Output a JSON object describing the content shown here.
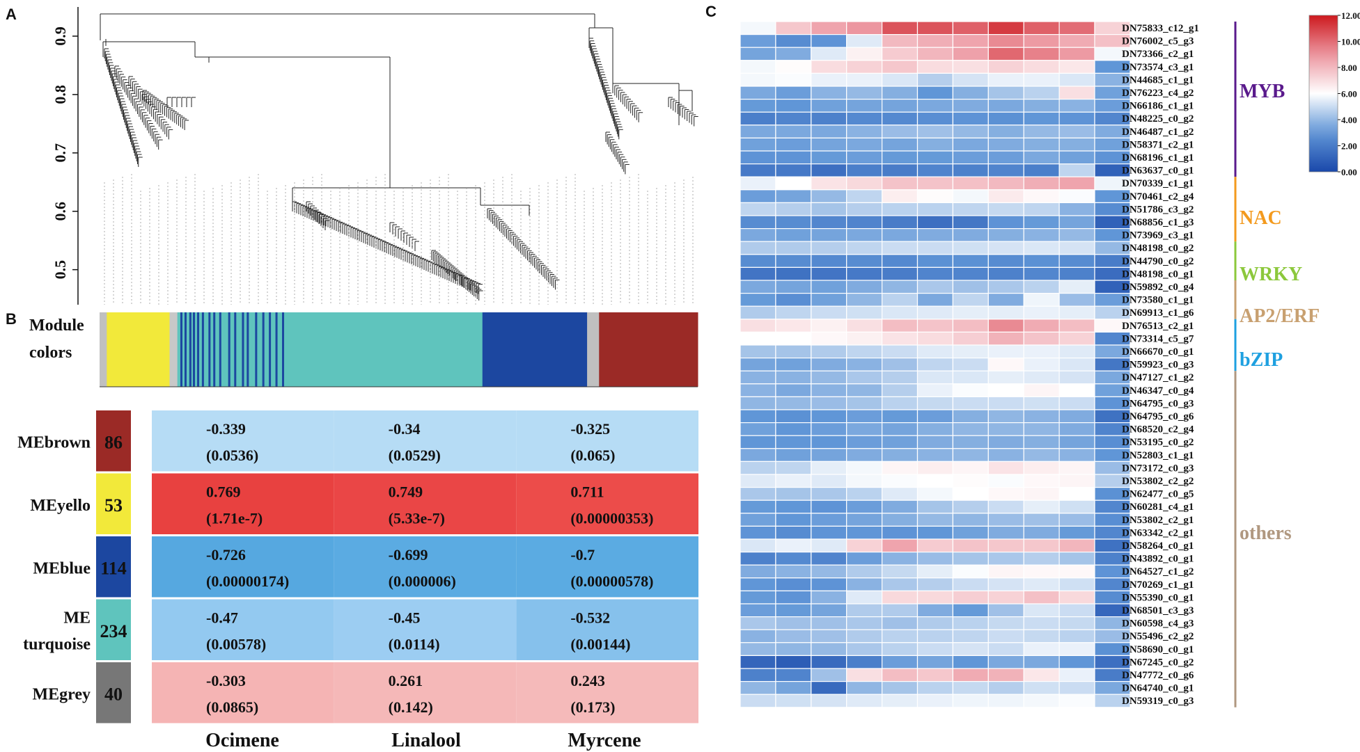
{
  "panel_labels": {
    "a": "A",
    "b": "B",
    "c": "C"
  },
  "chart_data": [
    {
      "type": "dendrogram",
      "panel": "A",
      "ylim": [
        0.44,
        0.95
      ],
      "yticks": [
        "0.5",
        "0.6",
        "0.7",
        "0.8",
        "0.9"
      ]
    },
    {
      "type": "heatmap",
      "panel": "B",
      "module_colors_label": [
        "Module",
        "colors"
      ],
      "module_bar": [
        {
          "module": "grey",
          "from": 0.0,
          "to": 0.012,
          "color": "#c0c0c0"
        },
        {
          "module": "yellow",
          "from": 0.012,
          "to": 0.117,
          "color": "#f2e93a"
        },
        {
          "module": "grey",
          "from": 0.117,
          "to": 0.13,
          "color": "#c8c8c8"
        },
        {
          "module": "turquoise",
          "from": 0.13,
          "to": 0.64,
          "color": "#5fc4bd"
        },
        {
          "module": "blue",
          "from": 0.64,
          "to": 0.815,
          "color": "#1c47a0"
        },
        {
          "module": "grey",
          "from": 0.815,
          "to": 0.835,
          "color": "#c0c0c0"
        },
        {
          "module": "brown",
          "from": 0.835,
          "to": 1.0,
          "color": "#9b2a26"
        }
      ],
      "module_bar_blue_stripes": [
        0.135,
        0.142,
        0.15,
        0.156,
        0.163,
        0.171,
        0.182,
        0.19,
        0.2,
        0.215,
        0.225,
        0.238,
        0.246,
        0.26,
        0.272,
        0.283,
        0.294,
        0.305
      ],
      "columns": [
        "Ocimene",
        "Linalool",
        "Myrcene"
      ],
      "rows": [
        {
          "label": "MEbrown",
          "count": "86",
          "module_color": "#9b2a26",
          "cells": [
            {
              "r": "-0.339",
              "p": "(0.0536)",
              "color": "#b6dcf5"
            },
            {
              "r": "-0.34",
              "p": "(0.0529)",
              "color": "#b6dcf5"
            },
            {
              "r": "-0.325",
              "p": "(0.065)",
              "color": "#b6dcf5"
            }
          ]
        },
        {
          "label": "MEyello",
          "count": "53",
          "module_color": "#f2e93a",
          "cells": [
            {
              "r": "0.769",
              "p": "(1.71e-7)",
              "color": "#e84140"
            },
            {
              "r": "0.749",
              "p": "(5.33e-7)",
              "color": "#ea4646"
            },
            {
              "r": "0.711",
              "p": "(0.00000353)",
              "color": "#ec4c4a"
            }
          ]
        },
        {
          "label": "MEblue",
          "count": "114",
          "module_color": "#1c47a0",
          "cells": [
            {
              "r": "-0.726",
              "p": "(0.00000174)",
              "color": "#56a8e0"
            },
            {
              "r": "-0.699",
              "p": "(0.000006)",
              "color": "#5babe2"
            },
            {
              "r": "-0.7",
              "p": "(0.00000578)",
              "color": "#5babe2"
            }
          ]
        },
        {
          "label_lines": [
            "ME",
            "turquoise"
          ],
          "label": "ME turquoise",
          "count": "234",
          "module_color": "#5fc4bd",
          "cells": [
            {
              "r": "-0.47",
              "p": "(0.00578)",
              "color": "#93c9f0"
            },
            {
              "r": "-0.45",
              "p": "(0.0114)",
              "color": "#9ccdf2"
            },
            {
              "r": "-0.532",
              "p": "(0.00144)",
              "color": "#86c1ec"
            }
          ]
        },
        {
          "label": "MEgrey",
          "count": "40",
          "module_color": "#777777",
          "cells": [
            {
              "r": "-0.303",
              "p": "(0.0865)",
              "color": "#f5b4b4"
            },
            {
              "r": "0.261",
              "p": "(0.142)",
              "color": "#f5b8b8"
            },
            {
              "r": "0.243",
              "p": "(0.173)",
              "color": "#f5baba"
            }
          ]
        }
      ]
    },
    {
      "type": "heatmap",
      "panel": "C",
      "colorbar": {
        "min": 0,
        "max": 12,
        "ticks": [
          "12.00",
          "10.00",
          "8.00",
          "6.00",
          "4.00",
          "2.00",
          "0.00"
        ]
      },
      "genes": [
        "DN75833_c12_g1",
        "DN76002_c5_g3",
        "DN73366_c2_g1",
        "DN73574_c3_g1",
        "DN44685_c1_g1",
        "DN76223_c4_g2",
        "DN66186_c1_g1",
        "DN48225_c0_g2",
        "DN46487_c1_g2",
        "DN58371_c2_g1",
        "DN68196_c1_g1",
        "DN63637_c0_g1",
        "DN70339_c1_g1",
        "DN70461_c2_g4",
        "DN51786_c3_g2",
        "DN68856_c1_g3",
        "DN73969_c3_g1",
        "DN48198_c0_g2",
        "DN44790_c0_g2",
        "DN48198_c0_g1",
        "DN59892_c0_g4",
        "DN73580_c1_g1",
        "DN69913_c1_g6",
        "DN76513_c2_g1",
        "DN73314_c5_g7",
        "DN66670_c0_g1",
        "DN59923_c0_g3",
        "DN47127_c1_g2",
        "DN46347_c0_g4",
        "DN64795_c0_g3",
        "DN64795_c0_g6",
        "DN68520_c2_g4",
        "DN53195_c0_g2",
        "DN52803_c1_g1",
        "DN73172_c0_g3",
        "DN53802_c2_g2",
        "DN62477_c0_g5",
        "DN60281_c4_g1",
        "DN53802_c2_g1",
        "DN63342_c2_g1",
        "DN58264_c0_g1",
        "DN43892_c0_g1",
        "DN64527_c1_g2",
        "DN70269_c1_g1",
        "DN55390_c0_g1",
        "DN68501_c3_g3",
        "DN60598_c4_g3",
        "DN55496_c2_g2",
        "DN58690_c0_g1",
        "DN67245_c0_g2",
        "DN47772_c0_g6",
        "DN64740_c0_g1",
        "DN59319_c0_g3"
      ],
      "highlight_gene": "DN75833_c12_g1",
      "highlight_color": "#e8202a",
      "values": [
        [
          5.8,
          7.6,
          8.6,
          9.0,
          10.6,
          10.6,
          10.3,
          11.2,
          10.3,
          10.0,
          7.3
        ],
        [
          3.2,
          2.6,
          2.9,
          5.4,
          8.0,
          8.3,
          8.6,
          9.3,
          8.9,
          8.4,
          7.8
        ],
        [
          3.4,
          3.6,
          5.4,
          6.4,
          7.5,
          8.1,
          8.7,
          10.1,
          9.5,
          8.9,
          5.8
        ],
        [
          5.8,
          6.1,
          7.0,
          7.3,
          7.6,
          7.0,
          6.9,
          7.3,
          7.0,
          6.7,
          3.0
        ],
        [
          5.8,
          5.9,
          5.6,
          5.6,
          5.3,
          4.6,
          5.2,
          5.6,
          5.6,
          5.3,
          3.8
        ],
        [
          3.5,
          3.2,
          3.8,
          4.0,
          3.7,
          3.0,
          3.7,
          4.3,
          4.7,
          6.9,
          3.3
        ],
        [
          3.1,
          3.0,
          3.3,
          3.4,
          3.4,
          3.5,
          3.6,
          3.5,
          3.7,
          3.8,
          3.2
        ],
        [
          2.1,
          2.3,
          2.2,
          2.5,
          2.5,
          2.7,
          2.9,
          2.8,
          3.0,
          2.9,
          2.4
        ],
        [
          3.5,
          3.5,
          3.5,
          3.8,
          4.1,
          4.2,
          4.0,
          3.7,
          4.0,
          4.1,
          3.6
        ],
        [
          3.3,
          3.2,
          3.4,
          3.5,
          3.4,
          3.7,
          3.5,
          3.6,
          3.7,
          3.7,
          3.3
        ],
        [
          2.9,
          2.9,
          3.1,
          3.2,
          3.1,
          3.1,
          3.2,
          3.2,
          3.5,
          3.3,
          2.9
        ],
        [
          1.9,
          1.9,
          1.5,
          2.1,
          2.0,
          2.3,
          2.2,
          2.3,
          2.1,
          4.8,
          1.0
        ],
        [
          5.6,
          6.0,
          6.8,
          7.1,
          7.7,
          7.7,
          7.8,
          8.0,
          8.3,
          8.6,
          5.7
        ],
        [
          3.2,
          3.4,
          4.0,
          4.8,
          6.5,
          6.1,
          5.8,
          6.6,
          6.2,
          5.9,
          3.0
        ],
        [
          4.8,
          4.6,
          4.3,
          4.6,
          4.7,
          4.7,
          4.8,
          4.9,
          4.8,
          3.8,
          2.6
        ],
        [
          2.6,
          2.6,
          2.4,
          2.3,
          2.0,
          1.5,
          1.8,
          2.9,
          3.1,
          3.4,
          1.0
        ],
        [
          3.5,
          3.3,
          3.4,
          3.5,
          3.5,
          3.6,
          3.6,
          3.7,
          3.8,
          4.0,
          3.0
        ],
        [
          4.5,
          4.5,
          4.6,
          4.8,
          5.0,
          5.0,
          5.1,
          5.2,
          5.3,
          5.2,
          4.0
        ],
        [
          2.6,
          2.6,
          2.5,
          2.6,
          2.5,
          2.8,
          2.8,
          2.6,
          2.8,
          2.6,
          2.0
        ],
        [
          1.7,
          1.6,
          1.7,
          1.9,
          2.0,
          2.3,
          2.3,
          2.2,
          2.4,
          2.2,
          1.4
        ],
        [
          3.5,
          3.4,
          3.3,
          3.6,
          3.9,
          4.4,
          4.2,
          4.4,
          4.7,
          5.5,
          1.0
        ],
        [
          3.1,
          2.7,
          3.3,
          3.9,
          4.7,
          3.5,
          4.8,
          3.6,
          5.7,
          4.1,
          3.2
        ],
        [
          4.5,
          4.8,
          5.0,
          5.1,
          5.3,
          5.4,
          5.5,
          5.5,
          5.6,
          5.5,
          4.7
        ],
        [
          6.9,
          6.7,
          6.4,
          6.9,
          7.9,
          7.7,
          7.9,
          9.3,
          8.4,
          7.9,
          6.2
        ],
        [
          6.0,
          6.0,
          6.2,
          6.4,
          6.8,
          7.0,
          7.4,
          8.2,
          7.7,
          7.3,
          2.4
        ],
        [
          4.3,
          4.3,
          4.5,
          4.8,
          5.0,
          5.4,
          5.5,
          5.6,
          5.6,
          5.4,
          3.5
        ],
        [
          3.4,
          3.3,
          3.6,
          3.8,
          4.2,
          4.8,
          5.0,
          6.2,
          5.6,
          5.3,
          1.8
        ],
        [
          3.8,
          3.8,
          4.0,
          4.4,
          4.6,
          5.3,
          5.3,
          5.5,
          5.4,
          5.2,
          3.5
        ],
        [
          3.8,
          3.5,
          3.8,
          3.9,
          4.6,
          5.6,
          5.9,
          6.0,
          6.3,
          6.0,
          3.3
        ],
        [
          3.9,
          4.0,
          4.1,
          4.3,
          4.7,
          4.9,
          5.0,
          5.0,
          5.1,
          5.0,
          2.9
        ],
        [
          3.0,
          2.8,
          3.0,
          3.2,
          3.1,
          3.2,
          3.7,
          3.9,
          3.8,
          3.6,
          1.6
        ],
        [
          3.3,
          3.0,
          3.2,
          3.5,
          3.4,
          3.7,
          3.9,
          3.9,
          3.9,
          3.6,
          2.3
        ],
        [
          3.0,
          3.0,
          3.0,
          3.2,
          3.3,
          3.6,
          3.7,
          3.6,
          3.7,
          3.4,
          2.7
        ],
        [
          3.5,
          3.3,
          3.4,
          3.6,
          3.7,
          3.8,
          3.9,
          3.8,
          4.0,
          3.8,
          3.0
        ],
        [
          4.7,
          4.8,
          5.5,
          5.8,
          6.3,
          6.5,
          6.3,
          6.8,
          6.5,
          6.3,
          4.1
        ],
        [
          5.4,
          5.6,
          5.4,
          5.8,
          5.9,
          6.0,
          6.1,
          5.9,
          6.2,
          6.3,
          4.6
        ],
        [
          4.4,
          4.3,
          4.4,
          4.7,
          5.4,
          5.8,
          6.0,
          6.2,
          6.3,
          6.0,
          2.8
        ],
        [
          3.1,
          3.0,
          2.9,
          3.2,
          3.6,
          4.3,
          4.6,
          5.0,
          5.5,
          5.1,
          2.4
        ],
        [
          3.3,
          3.0,
          3.2,
          3.4,
          3.7,
          4.0,
          3.9,
          4.1,
          4.2,
          4.1,
          2.7
        ],
        [
          2.9,
          2.6,
          2.9,
          3.0,
          2.9,
          3.0,
          3.3,
          3.6,
          3.6,
          3.1,
          2.4
        ],
        [
          5.3,
          5.6,
          5.4,
          7.3,
          8.6,
          7.5,
          7.7,
          7.6,
          7.6,
          8.1,
          1.6
        ],
        [
          2.2,
          2.5,
          2.3,
          3.2,
          3.8,
          4.1,
          4.3,
          4.4,
          4.6,
          4.3,
          2.2
        ],
        [
          3.6,
          3.8,
          4.0,
          4.5,
          4.9,
          5.5,
          5.9,
          6.3,
          6.2,
          6.2,
          2.9
        ],
        [
          3.0,
          2.7,
          2.9,
          3.8,
          4.4,
          4.6,
          5.0,
          5.2,
          5.4,
          5.1,
          2.4
        ],
        [
          3.1,
          2.9,
          3.8,
          5.4,
          7.1,
          7.1,
          7.4,
          7.3,
          7.8,
          7.1,
          2.6
        ],
        [
          3.2,
          3.1,
          3.4,
          4.5,
          4.5,
          3.6,
          3.1,
          4.2,
          5.3,
          5.0,
          1.2
        ],
        [
          4.4,
          4.2,
          4.2,
          4.4,
          4.2,
          4.5,
          4.7,
          4.9,
          5.0,
          4.9,
          3.9
        ],
        [
          3.8,
          4.1,
          4.2,
          4.5,
          4.7,
          4.7,
          4.8,
          5.0,
          4.9,
          4.7,
          4.1
        ],
        [
          4.0,
          3.9,
          4.0,
          4.4,
          4.7,
          5.0,
          5.2,
          5.0,
          5.6,
          5.6,
          2.8
        ],
        [
          1.1,
          0.8,
          1.3,
          2.1,
          3.2,
          3.4,
          3.0,
          3.5,
          3.5,
          3.0,
          1.5
        ],
        [
          2.2,
          2.3,
          4.2,
          6.9,
          7.9,
          7.6,
          8.4,
          8.2,
          6.7,
          5.6,
          2.0
        ],
        [
          3.9,
          3.4,
          1.3,
          3.9,
          4.3,
          4.7,
          4.9,
          4.6,
          5.1,
          5.0,
          3.5
        ],
        [
          5.0,
          5.1,
          5.2,
          5.4,
          5.5,
          5.6,
          5.7,
          5.7,
          5.8,
          5.9,
          4.7
        ]
      ],
      "families": [
        {
          "name": "MYB",
          "start": 0,
          "end": 12,
          "color": "#5a1a8c"
        },
        {
          "name": "NAC",
          "start": 12,
          "end": 17,
          "color": "#f39a1e"
        },
        {
          "name": "WRKY",
          "start": 17,
          "end": 20,
          "color": "#8cc83c"
        },
        {
          "name": "AP2/ERF",
          "start": 20,
          "end": 23,
          "color": "#c8a070"
        },
        {
          "name": "bZIP",
          "start": 23,
          "end": 27,
          "color": "#1ea0e0"
        },
        {
          "name": "others",
          "start": 27,
          "end": 53,
          "color": "#b09880"
        }
      ]
    }
  ]
}
